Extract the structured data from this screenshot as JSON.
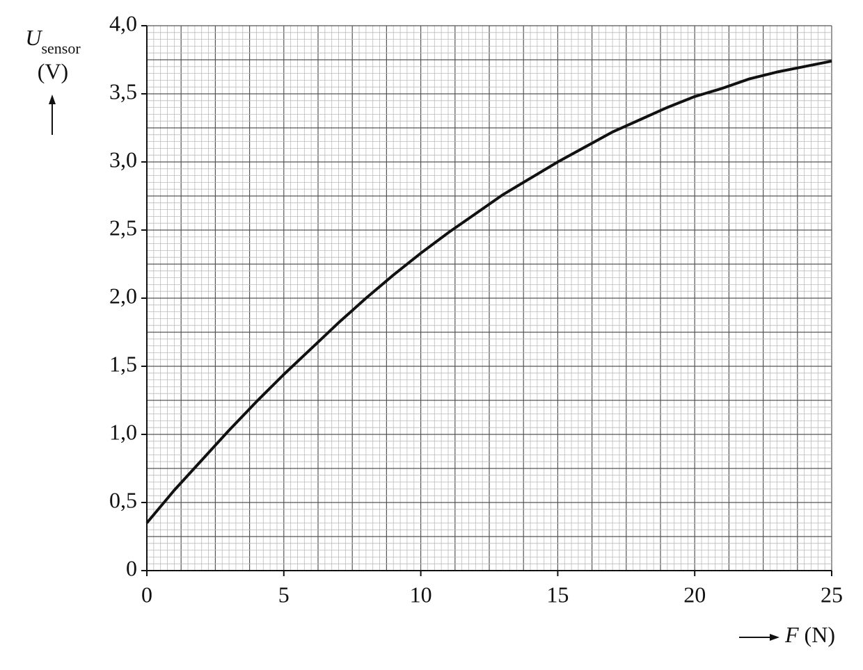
{
  "chart_data": {
    "type": "line",
    "y_label": {
      "symbol": "U",
      "subscript": "sensor",
      "unit": "(V)"
    },
    "x_label": {
      "symbol": "F",
      "unit": "(N)"
    },
    "x": [
      0,
      1,
      2,
      3,
      4,
      5,
      6,
      7,
      8,
      9,
      10,
      11,
      12,
      13,
      14,
      15,
      16,
      17,
      18,
      19,
      20,
      21,
      22,
      23,
      24,
      25
    ],
    "values": [
      0.35,
      0.59,
      0.81,
      1.03,
      1.24,
      1.44,
      1.63,
      1.82,
      2.0,
      2.17,
      2.33,
      2.48,
      2.62,
      2.76,
      2.88,
      3.0,
      3.11,
      3.22,
      3.31,
      3.4,
      3.48,
      3.54,
      3.61,
      3.66,
      3.7,
      3.74
    ],
    "color": "#111111",
    "xlim": [
      0,
      25
    ],
    "xticks": [
      0,
      5,
      10,
      15,
      20,
      25
    ],
    "ylim": [
      0,
      4.0
    ],
    "yticks": [
      0,
      {
        "value": 0.5,
        "label": "0,5"
      },
      {
        "value": 1.0,
        "label": "1,0"
      },
      {
        "value": 1.5,
        "label": "1,5"
      },
      {
        "value": 2.0,
        "label": "2,0"
      },
      {
        "value": 2.5,
        "label": "2,5"
      },
      {
        "value": 3.0,
        "label": "3,0"
      },
      {
        "value": 3.5,
        "label": "3,5"
      },
      {
        "value": 4.0,
        "label": "4,0"
      }
    ],
    "grid": true
  }
}
